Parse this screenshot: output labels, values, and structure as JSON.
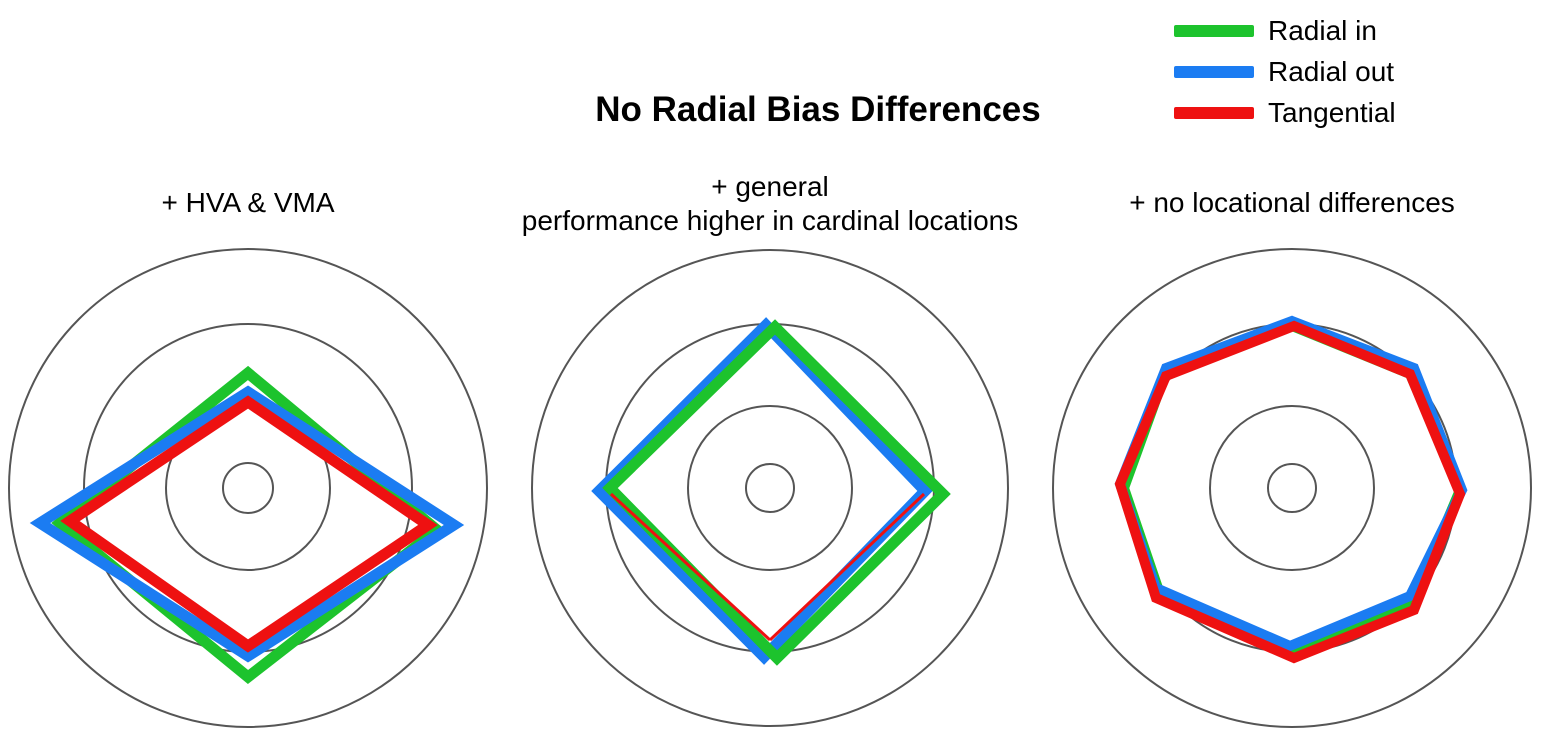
{
  "title": "No Radial Bias Differences",
  "legend": {
    "items": [
      {
        "label": "Radial in",
        "color": "#1dc32d"
      },
      {
        "label": "Radial out",
        "color": "#1b7cf2"
      },
      {
        "label": "Tangential",
        "color": "#ee1111"
      }
    ]
  },
  "panels": [
    {
      "subtitle_line1": "+ HVA & VMA",
      "subtitle_line2": ""
    },
    {
      "subtitle_line1": "+ general",
      "subtitle_line2": "performance higher in cardinal locations"
    },
    {
      "subtitle_line1": "+ no locational differences",
      "subtitle_line2": ""
    }
  ],
  "colors": {
    "ring": "#555555",
    "radial_in": "#1dc32d",
    "radial_out": "#1b7cf2",
    "tangential": "#ee1111"
  }
}
